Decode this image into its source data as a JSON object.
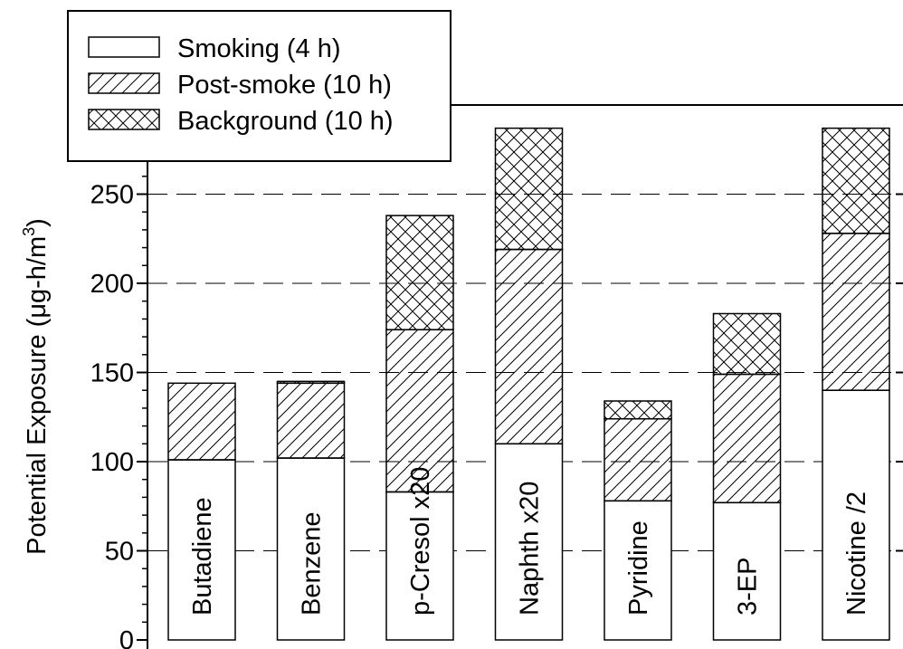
{
  "chart_data": {
    "type": "bar",
    "stacked": true,
    "ylabel": "Potential Exposure (μg-h/m",
    "ylabel_sup": "3",
    "ylabel_close": ")",
    "ylim": [
      0,
      300
    ],
    "yticks": [
      0,
      50,
      100,
      150,
      200,
      250
    ],
    "grid": "dashed horizontal",
    "legend_position": "top-left",
    "categories": [
      "Butadiene",
      "Benzene",
      "p-Cresol x20",
      "Naphth x20",
      "Pyridine",
      "3-EP",
      "Nicotine /2"
    ],
    "series": [
      {
        "name": "Smoking (4 h)",
        "pattern": "none",
        "values": [
          101,
          102,
          83,
          110,
          78,
          77,
          140
        ]
      },
      {
        "name": "Post-smoke (10 h)",
        "pattern": "diagonal",
        "values": [
          43,
          42,
          91,
          109,
          46,
          72,
          88
        ]
      },
      {
        "name": "Background (10 h)",
        "pattern": "crosshatch",
        "values": [
          0,
          1,
          64,
          68,
          10,
          34,
          59
        ]
      }
    ]
  }
}
